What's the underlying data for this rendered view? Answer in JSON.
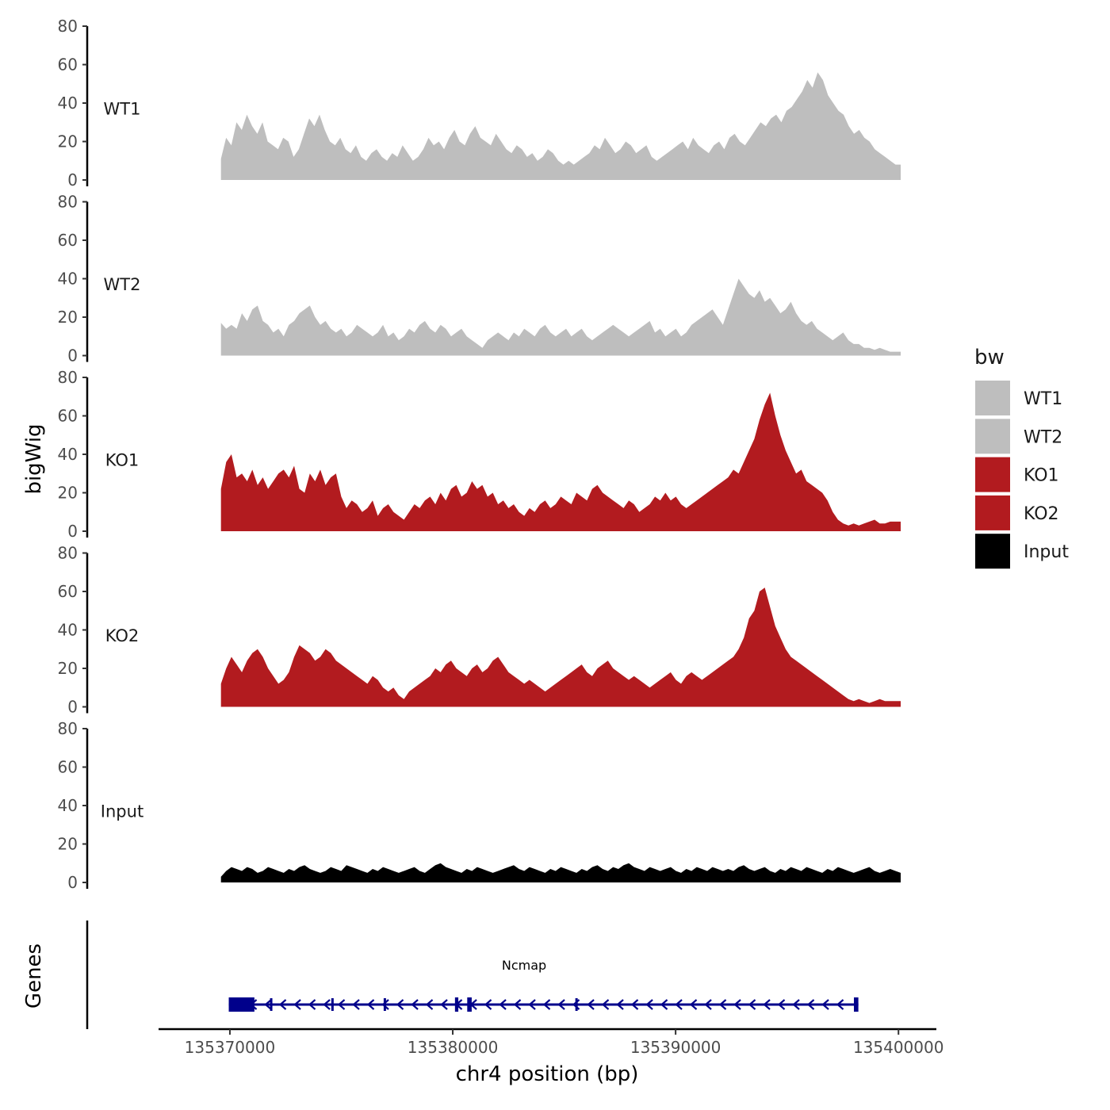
{
  "chart_data": {
    "type": "area",
    "ylabel": "bigWig",
    "xlabel": "chr4 position (bp)",
    "ylim": [
      0,
      80
    ],
    "y_ticks": [
      "0",
      "20",
      "40",
      "60",
      "80"
    ],
    "xlim": [
      135366800,
      135401700
    ],
    "x_ticks": [
      {
        "value": 135370000,
        "label": "135370000"
      },
      {
        "value": 135380000,
        "label": "135380000"
      },
      {
        "value": 135390000,
        "label": "135390000"
      },
      {
        "value": 135400000,
        "label": "135400000"
      }
    ],
    "x_range": [
      135369600,
      135400100
    ],
    "tracks": [
      {
        "name": "WT1",
        "color": "#bebebe",
        "values": [
          11,
          22,
          18,
          30,
          26,
          34,
          28,
          24,
          30,
          20,
          18,
          16,
          22,
          20,
          12,
          16,
          24,
          32,
          28,
          34,
          26,
          20,
          18,
          22,
          16,
          14,
          18,
          12,
          10,
          14,
          16,
          12,
          10,
          14,
          12,
          18,
          14,
          10,
          12,
          16,
          22,
          18,
          20,
          16,
          22,
          26,
          20,
          18,
          24,
          28,
          22,
          20,
          18,
          24,
          20,
          16,
          14,
          18,
          16,
          12,
          14,
          10,
          12,
          16,
          14,
          10,
          8,
          10,
          8,
          10,
          12,
          14,
          18,
          16,
          22,
          18,
          14,
          16,
          20,
          18,
          14,
          16,
          18,
          12,
          10,
          12,
          14,
          16,
          18,
          20,
          16,
          22,
          18,
          16,
          14,
          18,
          20,
          16,
          22,
          24,
          20,
          18,
          22,
          26,
          30,
          28,
          32,
          34,
          30,
          36,
          38,
          42,
          46,
          52,
          48,
          56,
          52,
          44,
          40,
          36,
          34,
          28,
          24,
          26,
          22,
          20,
          16,
          14,
          12,
          10,
          8,
          8
        ]
      },
      {
        "name": "WT2",
        "color": "#bebebe",
        "values": [
          17,
          14,
          16,
          14,
          22,
          18,
          24,
          26,
          18,
          16,
          12,
          14,
          10,
          16,
          18,
          22,
          24,
          26,
          20,
          16,
          18,
          14,
          12,
          14,
          10,
          12,
          16,
          14,
          12,
          10,
          12,
          16,
          10,
          12,
          8,
          10,
          14,
          12,
          16,
          18,
          14,
          12,
          16,
          14,
          10,
          12,
          14,
          10,
          8,
          6,
          4,
          8,
          10,
          12,
          10,
          8,
          12,
          10,
          14,
          12,
          10,
          14,
          16,
          12,
          10,
          12,
          14,
          10,
          12,
          14,
          10,
          8,
          10,
          12,
          14,
          16,
          14,
          12,
          10,
          12,
          14,
          16,
          18,
          12,
          14,
          10,
          12,
          14,
          10,
          12,
          16,
          18,
          20,
          22,
          24,
          20,
          16,
          24,
          32,
          40,
          36,
          32,
          30,
          34,
          28,
          30,
          26,
          22,
          24,
          28,
          22,
          18,
          16,
          18,
          14,
          12,
          10,
          8,
          10,
          12,
          8,
          6,
          6,
          4,
          4,
          3,
          4,
          3,
          2,
          2,
          2
        ]
      },
      {
        "name": "KO1",
        "color": "#b21b1f",
        "values": [
          22,
          36,
          40,
          28,
          30,
          26,
          32,
          24,
          28,
          22,
          26,
          30,
          32,
          28,
          34,
          22,
          20,
          30,
          26,
          32,
          24,
          28,
          30,
          18,
          12,
          16,
          14,
          10,
          12,
          16,
          8,
          12,
          14,
          10,
          8,
          6,
          10,
          14,
          12,
          16,
          18,
          14,
          20,
          16,
          22,
          24,
          18,
          20,
          26,
          22,
          24,
          18,
          20,
          14,
          16,
          12,
          14,
          10,
          8,
          12,
          10,
          14,
          16,
          12,
          14,
          18,
          16,
          14,
          20,
          18,
          16,
          22,
          24,
          20,
          18,
          16,
          14,
          12,
          16,
          14,
          10,
          12,
          14,
          18,
          16,
          20,
          16,
          18,
          14,
          12,
          14,
          16,
          18,
          20,
          22,
          24,
          26,
          28,
          32,
          30,
          36,
          42,
          48,
          58,
          66,
          72,
          60,
          50,
          42,
          36,
          30,
          32,
          26,
          24,
          22,
          20,
          16,
          10,
          6,
          4,
          3,
          4,
          3,
          4,
          5,
          6,
          4,
          4,
          5,
          5,
          5
        ]
      },
      {
        "name": "KO2",
        "color": "#b21b1f",
        "values": [
          12,
          20,
          26,
          22,
          18,
          24,
          28,
          30,
          26,
          20,
          16,
          12,
          14,
          18,
          26,
          32,
          30,
          28,
          24,
          26,
          30,
          28,
          24,
          22,
          20,
          18,
          16,
          14,
          12,
          16,
          14,
          10,
          8,
          10,
          6,
          4,
          8,
          10,
          12,
          14,
          16,
          20,
          18,
          22,
          24,
          20,
          18,
          16,
          20,
          22,
          18,
          20,
          24,
          26,
          22,
          18,
          16,
          14,
          12,
          14,
          12,
          10,
          8,
          10,
          12,
          14,
          16,
          18,
          20,
          22,
          18,
          16,
          20,
          22,
          24,
          20,
          18,
          16,
          14,
          16,
          14,
          12,
          10,
          12,
          14,
          16,
          18,
          14,
          12,
          16,
          18,
          16,
          14,
          16,
          18,
          20,
          22,
          24,
          26,
          30,
          36,
          46,
          50,
          60,
          62,
          52,
          42,
          36,
          30,
          26,
          24,
          22,
          20,
          18,
          16,
          14,
          12,
          10,
          8,
          6,
          4,
          3,
          4,
          3,
          2,
          3,
          4,
          3,
          3,
          3,
          3
        ]
      },
      {
        "name": "Input",
        "color": "#000000",
        "values": [
          3,
          6,
          8,
          7,
          6,
          8,
          7,
          5,
          6,
          8,
          7,
          6,
          5,
          7,
          6,
          8,
          9,
          7,
          6,
          5,
          6,
          8,
          7,
          6,
          9,
          8,
          7,
          6,
          5,
          7,
          6,
          8,
          7,
          6,
          5,
          6,
          7,
          8,
          6,
          5,
          7,
          9,
          10,
          8,
          7,
          6,
          5,
          7,
          6,
          8,
          7,
          6,
          5,
          6,
          7,
          8,
          9,
          7,
          6,
          8,
          7,
          6,
          5,
          7,
          6,
          8,
          7,
          6,
          5,
          7,
          6,
          8,
          9,
          7,
          6,
          8,
          7,
          9,
          10,
          8,
          7,
          6,
          8,
          7,
          6,
          7,
          8,
          6,
          5,
          7,
          6,
          8,
          7,
          6,
          8,
          7,
          6,
          7,
          6,
          8,
          9,
          7,
          6,
          7,
          8,
          6,
          5,
          7,
          6,
          8,
          7,
          6,
          8,
          7,
          6,
          5,
          7,
          6,
          8,
          7,
          6,
          5,
          6,
          7,
          8,
          6,
          5,
          6,
          7,
          6,
          5
        ]
      }
    ],
    "legend": {
      "title": "bw",
      "position": "right",
      "entries": [
        {
          "label": "WT1",
          "color": "#bebebe"
        },
        {
          "label": "WT2",
          "color": "#bebebe"
        },
        {
          "label": "KO1",
          "color": "#b21b1f"
        },
        {
          "label": "KO2",
          "color": "#b21b1f"
        },
        {
          "label": "Input",
          "color": "#000000"
        }
      ]
    },
    "genes_panel": {
      "title": "Genes",
      "gene_name": "Ncmap",
      "color": "#00008b",
      "strand": "-",
      "start": 135369950,
      "end": 135398200,
      "exons": [
        {
          "start": 135369950,
          "end": 135371100
        },
        {
          "start": 135371800,
          "end": 135371880
        },
        {
          "start": 135374550,
          "end": 135374620
        },
        {
          "start": 135376900,
          "end": 135376980
        },
        {
          "start": 135380100,
          "end": 135380250
        },
        {
          "start": 135380650,
          "end": 135380850
        },
        {
          "start": 135385500,
          "end": 135385600
        },
        {
          "start": 135398000,
          "end": 135398200
        }
      ]
    }
  }
}
